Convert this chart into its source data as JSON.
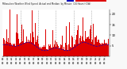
{
  "title": "Milwaukee Weather Wind Speed  Actual and Median  by Minute  (24 Hours) (Old)",
  "n_points": 1440,
  "y_min": 0,
  "y_max": 22,
  "yticks": [
    5,
    10,
    15,
    20
  ],
  "background_color": "#f8f8f8",
  "plot_bg_color": "#ffffff",
  "bar_color": "#dd0000",
  "median_color": "#0000cc",
  "median_lw": 0.5,
  "bar_width": 1.0,
  "vline_color": "#888888",
  "vline_positions": [
    240,
    480,
    720,
    960,
    1200
  ],
  "legend_actual_color": "#dd0000",
  "legend_median_color": "#0000bb",
  "seed": 42,
  "figsize": [
    1.6,
    0.87
  ],
  "dpi": 100
}
